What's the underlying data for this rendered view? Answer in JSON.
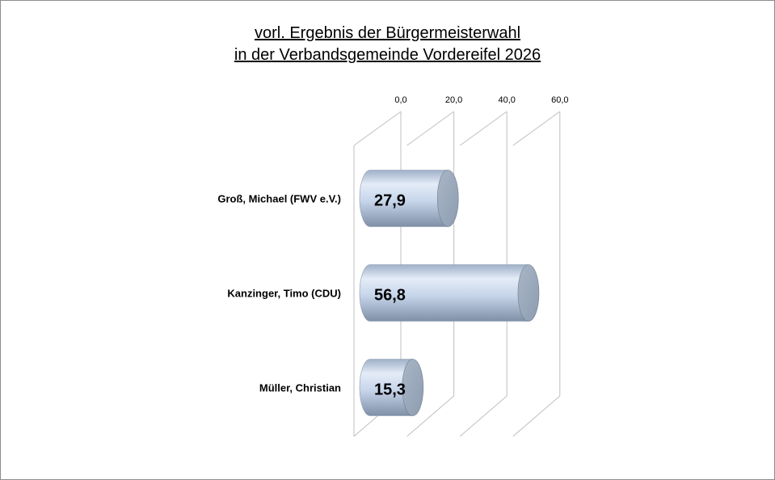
{
  "chart_data": {
    "type": "bar",
    "orientation": "horizontal",
    "style": "3d-cylinder",
    "title": [
      "vorl. Ergebnis der Bürgermeisterwahl",
      "in der Verbandsgemeinde Vordereifel 2026"
    ],
    "categories": [
      "Groß, Michael (FWV e.V.)",
      "Kanzinger, Timo (CDU)",
      "Müller, Christian"
    ],
    "values": [
      27.9,
      56.8,
      15.3
    ],
    "value_labels": [
      "27,9",
      "56,8",
      "15,3"
    ],
    "xaxis": {
      "ticks": [
        0,
        20,
        40,
        60
      ],
      "tick_labels": [
        "0,0",
        "20,0",
        "40,0",
        "60,0"
      ],
      "range": [
        0,
        60
      ],
      "position": "top"
    },
    "grid": true,
    "legend": "none",
    "colors": {
      "bar_body": "#c6d5ea",
      "bar_cap": "#8d9cb0",
      "grid": "#bfbfbf"
    }
  }
}
